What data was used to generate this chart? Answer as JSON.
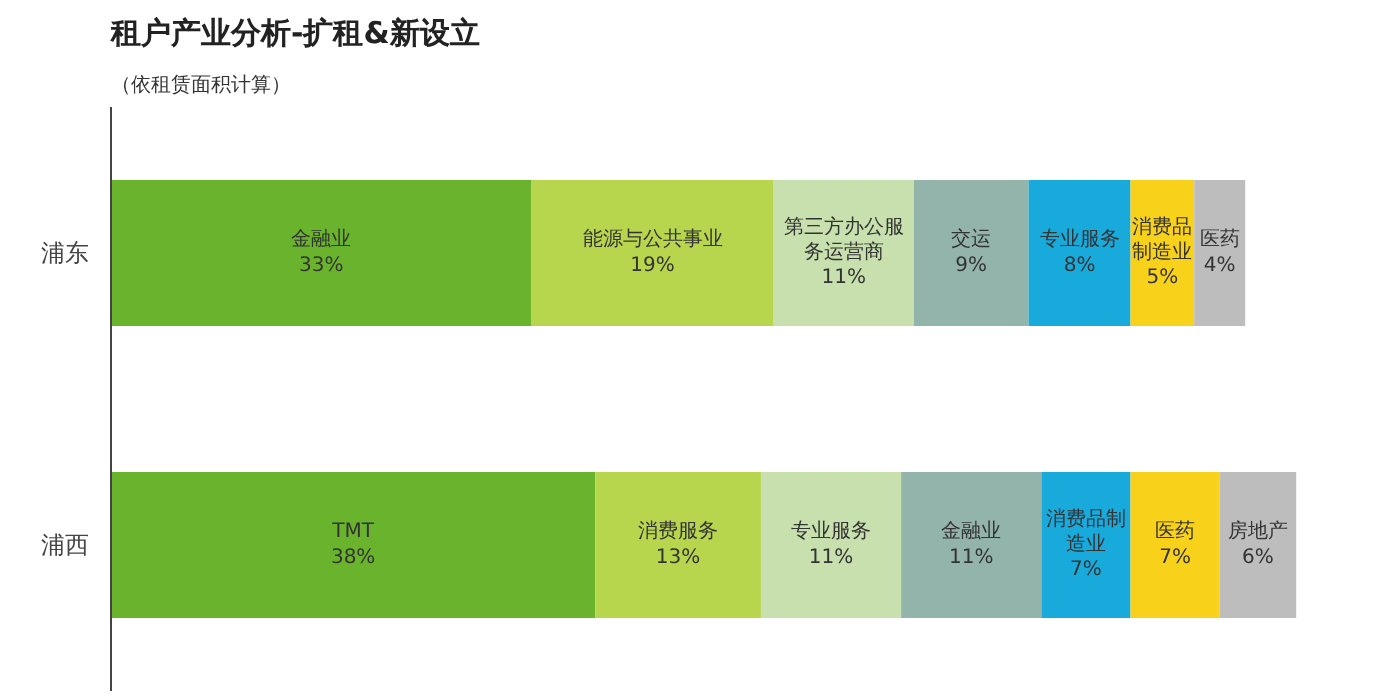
{
  "chart_data": {
    "type": "bar",
    "orientation": "horizontal",
    "stacked": true,
    "title": "租户产业分析-扩租&新设立",
    "subtitle": "（依租赁面积计算）",
    "categories": [
      "浦东",
      "浦西"
    ],
    "series": [
      {
        "color": "#6ab42d",
        "values": [
          33,
          38
        ],
        "value_labels": [
          "金融业\n33%",
          "TMT\n38%"
        ]
      },
      {
        "color": "#b8d54e",
        "values": [
          19,
          13
        ],
        "value_labels": [
          "能源与公共事业\n19%",
          "消费服务\n13%"
        ]
      },
      {
        "color": "#c8e0ad",
        "values": [
          11,
          11
        ],
        "value_labels": [
          "第三方办公服务运营商\n11%",
          "专业服务\n11%"
        ]
      },
      {
        "color": "#93b4ab",
        "values": [
          9,
          11
        ],
        "value_labels": [
          "交运\n9%",
          "金融业\n11%"
        ]
      },
      {
        "color": "#19aadc",
        "values": [
          8,
          7
        ],
        "value_labels": [
          "专业服务\n8%",
          "消费品制造业\n7%"
        ]
      },
      {
        "color": "#f8d21a",
        "values": [
          5,
          7
        ],
        "value_labels": [
          "消费品制造业\n5%",
          "医药\n7%"
        ]
      },
      {
        "color": "#bdbdbd",
        "values": [
          4,
          6
        ],
        "value_labels": [
          "医药\n4%",
          "房地产\n6%"
        ]
      }
    ],
    "grid": false,
    "tick_labels": "y"
  }
}
